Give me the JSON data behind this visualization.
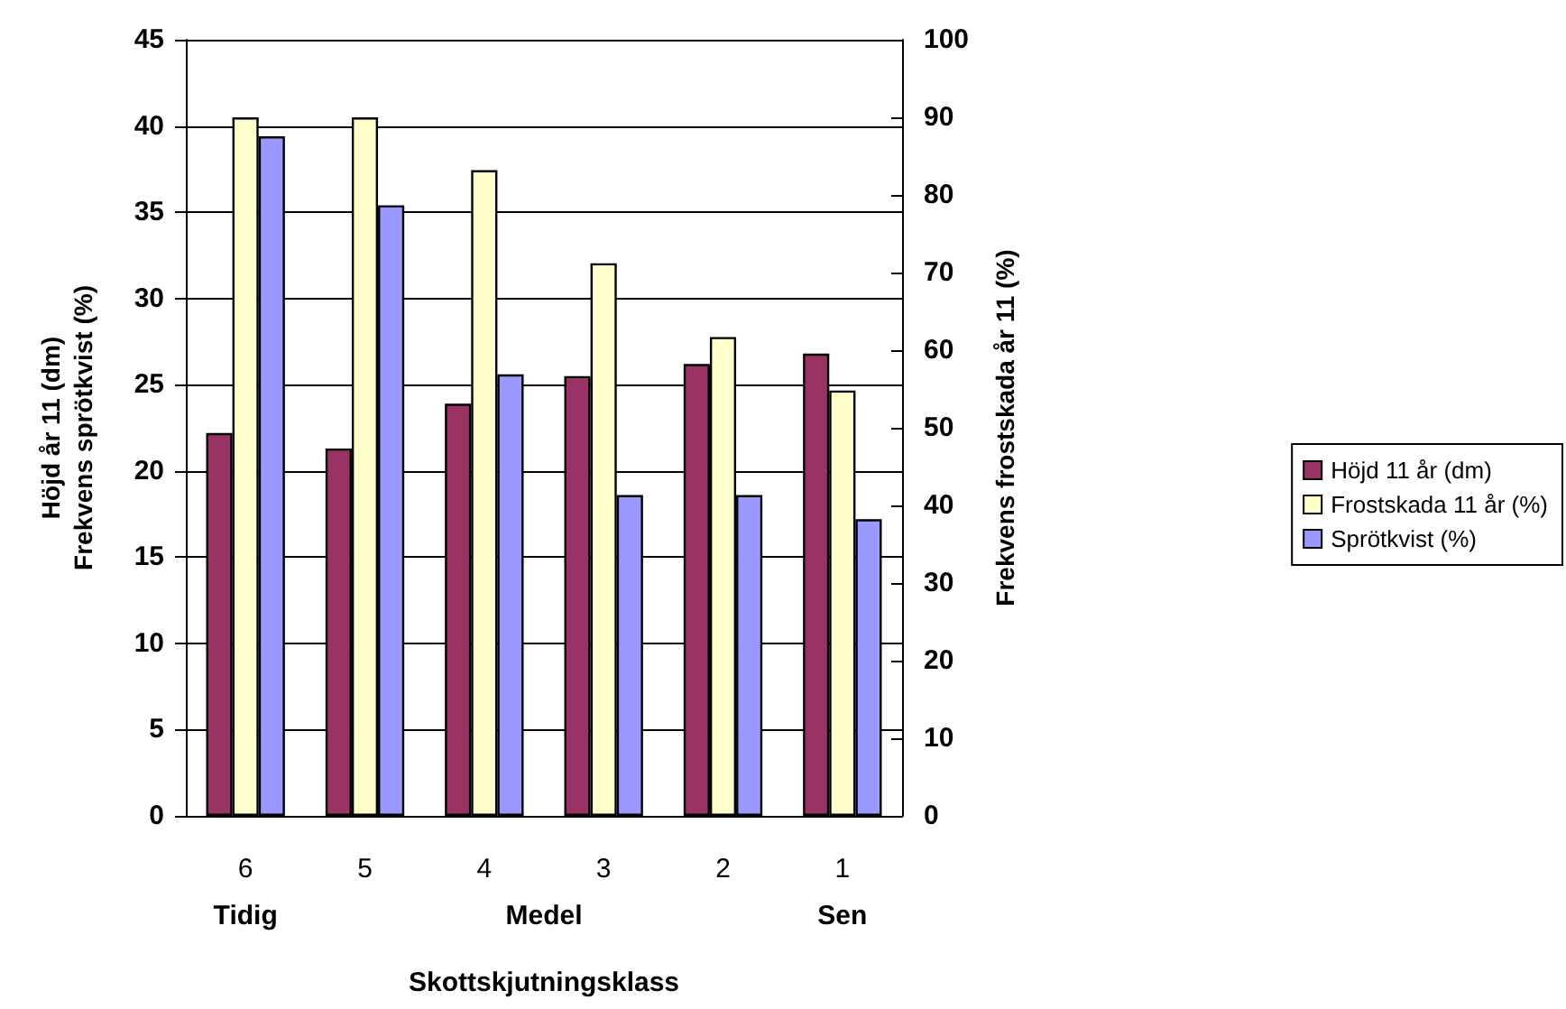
{
  "chart_data": {
    "type": "bar",
    "xlabel": "Skottskjutningsklass",
    "ylabel": "Höjd år 11 (dm)\nFrekvens sprötkvist (%)",
    "y2label": "Frekvens frostskada år 11 (%)",
    "categories": [
      "6",
      "5",
      "4",
      "3",
      "2",
      "1"
    ],
    "series": [
      {
        "name": "Höjd 11 år (dm)",
        "color": "#993366",
        "values": [
          22.2,
          21.3,
          23.9,
          25.5,
          26.2,
          26.8
        ]
      },
      {
        "name": "Frostskada 11 år (%)",
        "color": "#ffffcc",
        "axis": "y2",
        "values": [
          90,
          90,
          83.2,
          71.2,
          61.7,
          54.8
        ]
      },
      {
        "name": "Sprötkvist (%)",
        "color": "#9999ff",
        "values": [
          39.4,
          35.4,
          25.6,
          18.6,
          18.6,
          17.2
        ]
      }
    ],
    "ylim": [
      0,
      45
    ],
    "yticks": [
      0,
      5,
      10,
      15,
      20,
      25,
      30,
      35,
      40,
      45
    ],
    "y2lim": [
      0,
      100
    ],
    "y2ticks": [
      0,
      10,
      20,
      30,
      40,
      50,
      60,
      70,
      80,
      90,
      100
    ],
    "grid": "y",
    "legend": "right",
    "annotations": [
      "Tidig",
      "Medel",
      "Sen"
    ]
  }
}
